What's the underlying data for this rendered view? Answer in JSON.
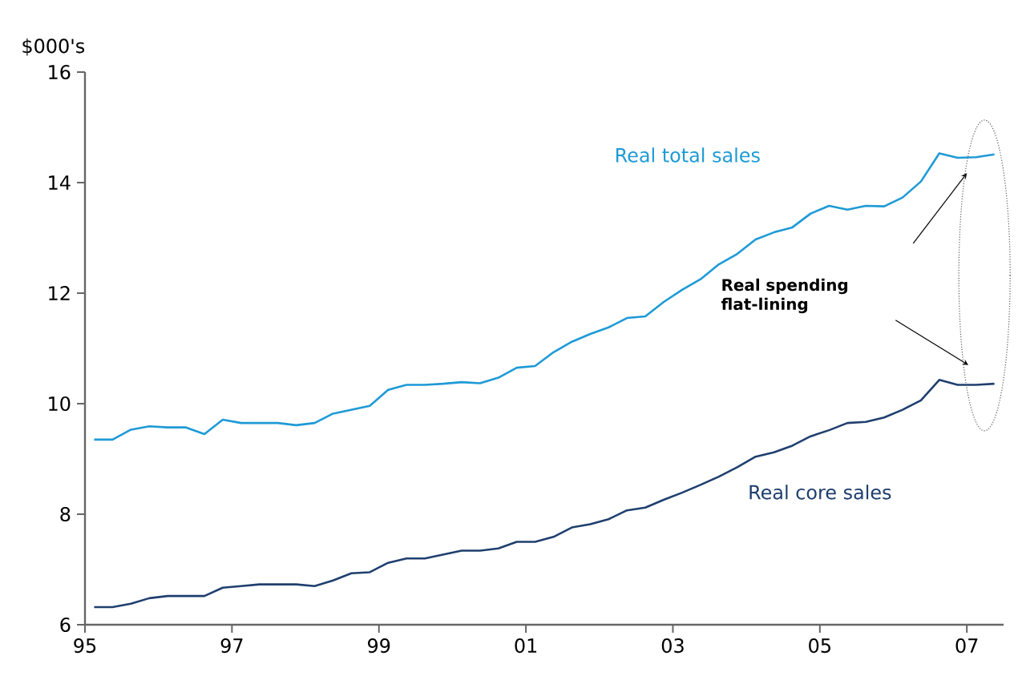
{
  "chart_data": {
    "type": "line",
    "ylabel": "$000's",
    "xlim": [
      1995,
      2007.5
    ],
    "ylim": [
      6,
      16
    ],
    "xticks": [
      {
        "value": 1995,
        "label": "95"
      },
      {
        "value": 1997,
        "label": "97"
      },
      {
        "value": 1999,
        "label": "99"
      },
      {
        "value": 2001,
        "label": "01"
      },
      {
        "value": 2003,
        "label": "03"
      },
      {
        "value": 2005,
        "label": "05"
      },
      {
        "value": 2007,
        "label": "07"
      }
    ],
    "yticks": [
      6,
      8,
      10,
      12,
      14,
      16
    ],
    "grid": false,
    "legend": false,
    "marker": "none",
    "line_style": "solid",
    "x": [
      1995.125,
      1995.375,
      1995.625,
      1995.875,
      1996.125,
      1996.375,
      1996.625,
      1996.875,
      1997.125,
      1997.375,
      1997.625,
      1997.875,
      1998.125,
      1998.375,
      1998.625,
      1998.875,
      1999.125,
      1999.375,
      1999.625,
      1999.875,
      2000.125,
      2000.375,
      2000.625,
      2000.875,
      2001.125,
      2001.375,
      2001.625,
      2001.875,
      2002.125,
      2002.375,
      2002.625,
      2002.875,
      2003.125,
      2003.375,
      2003.625,
      2003.875,
      2004.125,
      2004.375,
      2004.625,
      2004.875,
      2005.125,
      2005.375,
      2005.625,
      2005.875,
      2006.125,
      2006.375,
      2006.625,
      2006.875,
      2007.125,
      2007.375
    ],
    "series": [
      {
        "name": "Real total sales",
        "color": "#1e9ad6",
        "values": [
          9.35,
          9.35,
          9.53,
          9.59,
          9.57,
          9.57,
          9.45,
          9.71,
          9.65,
          9.65,
          9.65,
          9.61,
          9.65,
          9.82,
          9.89,
          9.96,
          10.25,
          10.34,
          10.34,
          10.36,
          10.39,
          10.37,
          10.47,
          10.65,
          10.68,
          10.93,
          11.12,
          11.26,
          11.38,
          11.55,
          11.58,
          11.84,
          12.06,
          12.25,
          12.52,
          12.71,
          12.97,
          13.1,
          13.19,
          13.44,
          13.58,
          13.51,
          13.58,
          13.57,
          13.73,
          14.02,
          14.53,
          14.45,
          14.46,
          14.51
        ]
      },
      {
        "name": "Real core sales",
        "color": "#1f3f6e",
        "values": [
          6.32,
          6.32,
          6.38,
          6.48,
          6.52,
          6.52,
          6.52,
          6.67,
          6.7,
          6.73,
          6.73,
          6.73,
          6.7,
          6.8,
          6.93,
          6.95,
          7.12,
          7.2,
          7.2,
          7.27,
          7.34,
          7.34,
          7.38,
          7.5,
          7.5,
          7.59,
          7.76,
          7.82,
          7.91,
          8.07,
          8.12,
          8.26,
          8.39,
          8.53,
          8.68,
          8.85,
          9.04,
          9.12,
          9.24,
          9.41,
          9.52,
          9.65,
          9.67,
          9.75,
          9.89,
          10.06,
          10.43,
          10.34,
          10.34,
          10.36
        ]
      }
    ],
    "annotations": [
      "Real spending flat-lining"
    ]
  }
}
